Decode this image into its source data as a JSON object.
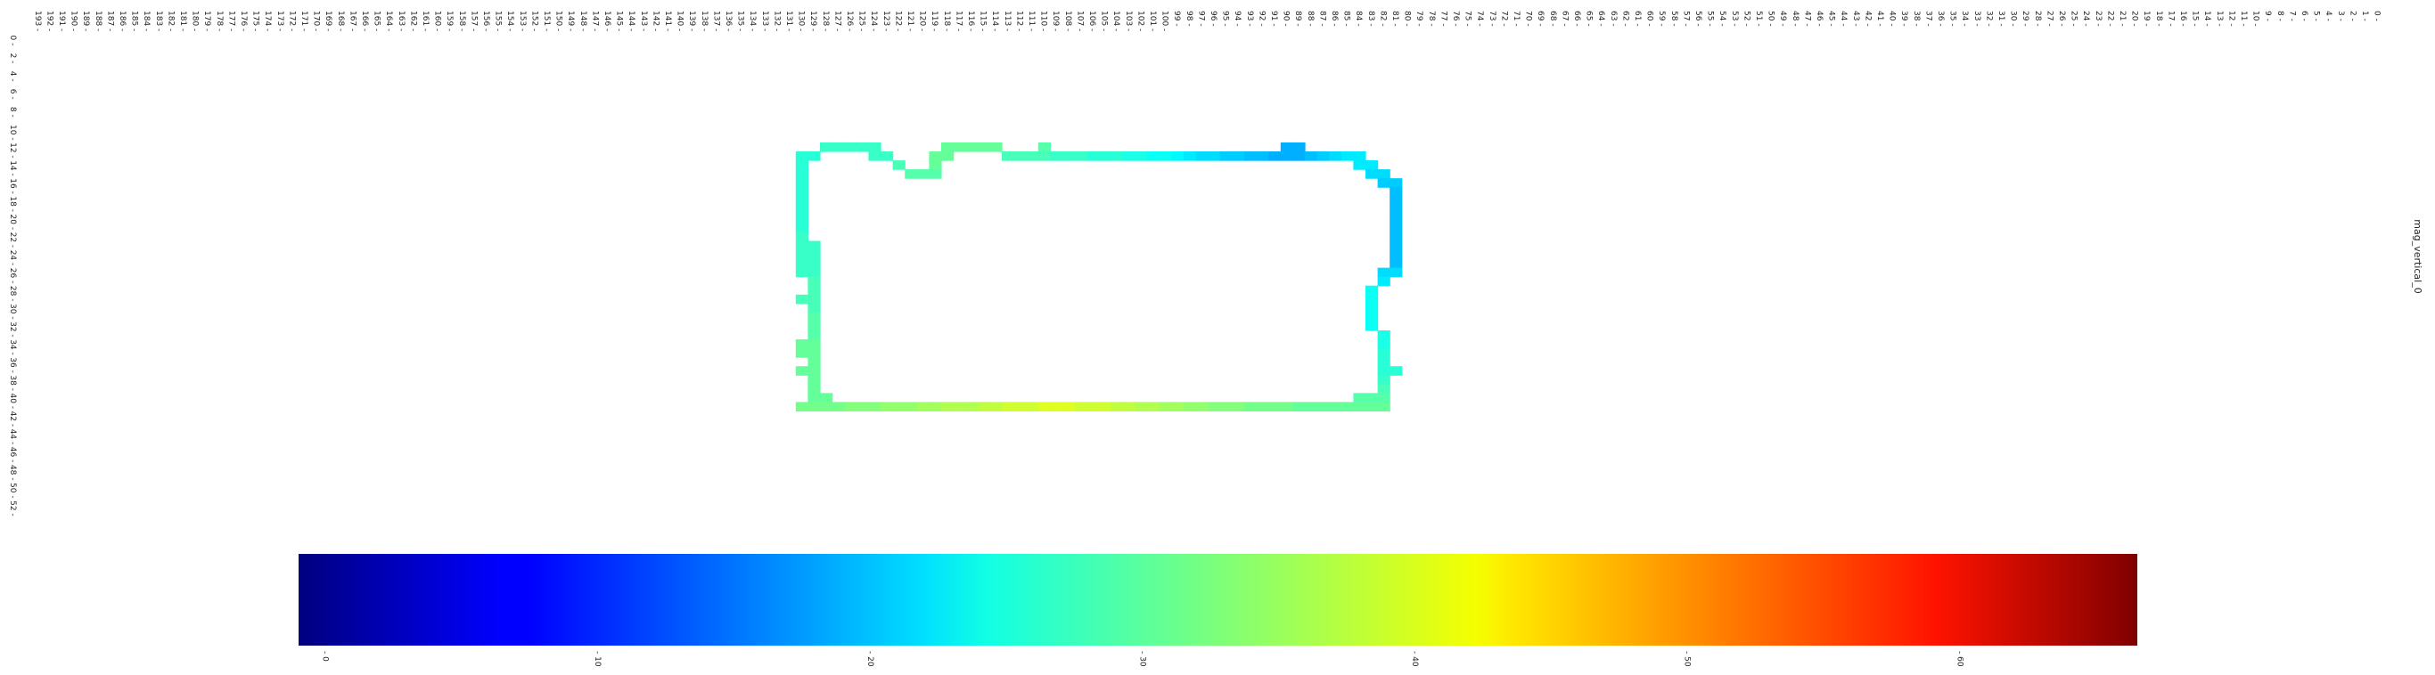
{
  "chart_data": {
    "type": "heatmap",
    "title": "",
    "xlabel": "",
    "ylabel": "",
    "colorbar": {
      "label": "mag_vertical_0",
      "colormap": "jet",
      "range": [
        -1,
        66.5
      ],
      "ticks": [
        0,
        10,
        20,
        30,
        40,
        50,
        60
      ]
    },
    "x_ticks": [
      193,
      192,
      191,
      190,
      189,
      188,
      187,
      186,
      185,
      184,
      183,
      182,
      181,
      180,
      179,
      178,
      177,
      176,
      175,
      174,
      173,
      172,
      171,
      170,
      169,
      168,
      167,
      166,
      165,
      164,
      163,
      162,
      161,
      160,
      159,
      158,
      157,
      156,
      155,
      154,
      153,
      152,
      151,
      150,
      149,
      148,
      147,
      146,
      145,
      144,
      143,
      142,
      141,
      140,
      139,
      138,
      137,
      136,
      135,
      134,
      133,
      132,
      131,
      130,
      129,
      128,
      127,
      126,
      125,
      124,
      123,
      122,
      121,
      120,
      119,
      118,
      117,
      116,
      115,
      114,
      113,
      112,
      111,
      110,
      109,
      108,
      107,
      106,
      105,
      104,
      103,
      102,
      101,
      100,
      99,
      98,
      97,
      96,
      95,
      94,
      93,
      92,
      91,
      90,
      89,
      88,
      87,
      86,
      85,
      84,
      83,
      82,
      81,
      80,
      79,
      78,
      77,
      76,
      75,
      74,
      73,
      72,
      71,
      70,
      69,
      68,
      67,
      66,
      65,
      64,
      63,
      62,
      61,
      60,
      59,
      58,
      57,
      56,
      55,
      54,
      53,
      52,
      51,
      50,
      49,
      48,
      47,
      46,
      45,
      44,
      43,
      42,
      41,
      40,
      39,
      38,
      37,
      36,
      35,
      34,
      33,
      32,
      31,
      30,
      29,
      28,
      27,
      26,
      25,
      24,
      23,
      22,
      21,
      20,
      19,
      18,
      17,
      16,
      15,
      14,
      13,
      12,
      11,
      10,
      9,
      8,
      7,
      6,
      5,
      4,
      3,
      2,
      1,
      0
    ],
    "y_ticks": [
      0,
      2,
      4,
      6,
      8,
      10,
      12,
      14,
      16,
      18,
      20,
      22,
      24,
      26,
      28,
      30,
      32,
      34,
      36,
      38,
      40,
      42,
      44,
      46,
      48,
      50,
      52
    ],
    "cells": [
      {
        "col": 90,
        "row": 9,
        "v": 19
      },
      {
        "col": 89,
        "row": 9,
        "v": 19
      },
      {
        "col": 128,
        "row": 9,
        "v": 28
      },
      {
        "col": 127,
        "row": 9,
        "v": 28
      },
      {
        "col": 126,
        "row": 9,
        "v": 28
      },
      {
        "col": 125,
        "row": 9,
        "v": 28
      },
      {
        "col": 124,
        "row": 9,
        "v": 28
      },
      {
        "col": 118,
        "row": 9,
        "v": 31
      },
      {
        "col": 117,
        "row": 9,
        "v": 31
      },
      {
        "col": 116,
        "row": 9,
        "v": 31
      },
      {
        "col": 115,
        "row": 9,
        "v": 31
      },
      {
        "col": 114,
        "row": 9,
        "v": 31
      },
      {
        "col": 110,
        "row": 9,
        "v": 30
      },
      {
        "col": 130,
        "row": 10,
        "v": 27
      },
      {
        "col": 129,
        "row": 10,
        "v": 27
      },
      {
        "col": 124,
        "row": 10,
        "v": 28
      },
      {
        "col": 123,
        "row": 10,
        "v": 28
      },
      {
        "col": 119,
        "row": 10,
        "v": 31
      },
      {
        "col": 118,
        "row": 10,
        "v": 31
      },
      {
        "col": 113,
        "row": 10,
        "v": 29
      },
      {
        "col": 112,
        "row": 10,
        "v": 29
      },
      {
        "col": 111,
        "row": 10,
        "v": 29
      },
      {
        "col": 110,
        "row": 10,
        "v": 29
      },
      {
        "col": 109,
        "row": 10,
        "v": 28
      },
      {
        "col": 108,
        "row": 10,
        "v": 28
      },
      {
        "col": 107,
        "row": 10,
        "v": 28
      },
      {
        "col": 106,
        "row": 10,
        "v": 27
      },
      {
        "col": 105,
        "row": 10,
        "v": 27
      },
      {
        "col": 104,
        "row": 10,
        "v": 27
      },
      {
        "col": 103,
        "row": 10,
        "v": 26
      },
      {
        "col": 102,
        "row": 10,
        "v": 26
      },
      {
        "col": 101,
        "row": 10,
        "v": 25
      },
      {
        "col": 100,
        "row": 10,
        "v": 25
      },
      {
        "col": 99,
        "row": 10,
        "v": 24
      },
      {
        "col": 98,
        "row": 10,
        "v": 23
      },
      {
        "col": 97,
        "row": 10,
        "v": 22
      },
      {
        "col": 96,
        "row": 10,
        "v": 22
      },
      {
        "col": 95,
        "row": 10,
        "v": 21
      },
      {
        "col": 94,
        "row": 10,
        "v": 21
      },
      {
        "col": 93,
        "row": 10,
        "v": 20
      },
      {
        "col": 92,
        "row": 10,
        "v": 20
      },
      {
        "col": 91,
        "row": 10,
        "v": 19
      },
      {
        "col": 90,
        "row": 10,
        "v": 19
      },
      {
        "col": 89,
        "row": 10,
        "v": 19
      },
      {
        "col": 88,
        "row": 10,
        "v": 20
      },
      {
        "col": 87,
        "row": 10,
        "v": 21
      },
      {
        "col": 86,
        "row": 10,
        "v": 22
      },
      {
        "col": 85,
        "row": 10,
        "v": 23
      },
      {
        "col": 84,
        "row": 10,
        "v": 23
      },
      {
        "col": 130,
        "row": 11,
        "v": 27
      },
      {
        "col": 122,
        "row": 11,
        "v": 29
      },
      {
        "col": 119,
        "row": 11,
        "v": 31
      },
      {
        "col": 84,
        "row": 11,
        "v": 23
      },
      {
        "col": 83,
        "row": 11,
        "v": 23
      },
      {
        "col": 130,
        "row": 12,
        "v": 27
      },
      {
        "col": 121,
        "row": 12,
        "v": 30
      },
      {
        "col": 120,
        "row": 12,
        "v": 30
      },
      {
        "col": 119,
        "row": 12,
        "v": 30
      },
      {
        "col": 83,
        "row": 12,
        "v": 22
      },
      {
        "col": 82,
        "row": 12,
        "v": 22
      },
      {
        "col": 130,
        "row": 13,
        "v": 27
      },
      {
        "col": 82,
        "row": 13,
        "v": 21
      },
      {
        "col": 81,
        "row": 13,
        "v": 21
      },
      {
        "col": 130,
        "row": 14,
        "v": 27
      },
      {
        "col": 81,
        "row": 14,
        "v": 20
      },
      {
        "col": 130,
        "row": 15,
        "v": 27
      },
      {
        "col": 81,
        "row": 15,
        "v": 20
      },
      {
        "col": 130,
        "row": 16,
        "v": 27
      },
      {
        "col": 81,
        "row": 16,
        "v": 20
      },
      {
        "col": 130,
        "row": 17,
        "v": 27
      },
      {
        "col": 81,
        "row": 17,
        "v": 20
      },
      {
        "col": 130,
        "row": 18,
        "v": 27
      },
      {
        "col": 81,
        "row": 18,
        "v": 20
      },
      {
        "col": 130,
        "row": 19,
        "v": 28
      },
      {
        "col": 81,
        "row": 19,
        "v": 20
      },
      {
        "col": 130,
        "row": 20,
        "v": 28
      },
      {
        "col": 129,
        "row": 20,
        "v": 28
      },
      {
        "col": 81,
        "row": 20,
        "v": 20
      },
      {
        "col": 130,
        "row": 21,
        "v": 28
      },
      {
        "col": 129,
        "row": 21,
        "v": 28
      },
      {
        "col": 81,
        "row": 21,
        "v": 20
      },
      {
        "col": 130,
        "row": 22,
        "v": 28
      },
      {
        "col": 129,
        "row": 22,
        "v": 28
      },
      {
        "col": 81,
        "row": 22,
        "v": 20
      },
      {
        "col": 130,
        "row": 23,
        "v": 28
      },
      {
        "col": 129,
        "row": 23,
        "v": 28
      },
      {
        "col": 82,
        "row": 23,
        "v": 22
      },
      {
        "col": 81,
        "row": 23,
        "v": 22
      },
      {
        "col": 129,
        "row": 24,
        "v": 29
      },
      {
        "col": 82,
        "row": 24,
        "v": 23
      },
      {
        "col": 129,
        "row": 25,
        "v": 29
      },
      {
        "col": 83,
        "row": 25,
        "v": 25
      },
      {
        "col": 130,
        "row": 26,
        "v": 29
      },
      {
        "col": 129,
        "row": 26,
        "v": 29
      },
      {
        "col": 83,
        "row": 26,
        "v": 25
      },
      {
        "col": 129,
        "row": 27,
        "v": 29
      },
      {
        "col": 83,
        "row": 27,
        "v": 25
      },
      {
        "col": 129,
        "row": 28,
        "v": 30
      },
      {
        "col": 83,
        "row": 28,
        "v": 25
      },
      {
        "col": 129,
        "row": 29,
        "v": 30
      },
      {
        "col": 83,
        "row": 29,
        "v": 25
      },
      {
        "col": 129,
        "row": 30,
        "v": 30
      },
      {
        "col": 82,
        "row": 30,
        "v": 26
      },
      {
        "col": 130,
        "row": 31,
        "v": 31
      },
      {
        "col": 129,
        "row": 31,
        "v": 31
      },
      {
        "col": 82,
        "row": 31,
        "v": 26
      },
      {
        "col": 130,
        "row": 32,
        "v": 31
      },
      {
        "col": 129,
        "row": 32,
        "v": 31
      },
      {
        "col": 82,
        "row": 32,
        "v": 27
      },
      {
        "col": 129,
        "row": 33,
        "v": 31
      },
      {
        "col": 82,
        "row": 33,
        "v": 27
      },
      {
        "col": 130,
        "row": 34,
        "v": 31
      },
      {
        "col": 129,
        "row": 34,
        "v": 31
      },
      {
        "col": 82,
        "row": 34,
        "v": 27
      },
      {
        "col": 81,
        "row": 34,
        "v": 27
      },
      {
        "col": 129,
        "row": 35,
        "v": 31
      },
      {
        "col": 82,
        "row": 35,
        "v": 28
      },
      {
        "col": 129,
        "row": 36,
        "v": 31
      },
      {
        "col": 82,
        "row": 36,
        "v": 29
      },
      {
        "col": 129,
        "row": 37,
        "v": 31
      },
      {
        "col": 128,
        "row": 37,
        "v": 31
      },
      {
        "col": 84,
        "row": 37,
        "v": 30
      },
      {
        "col": 83,
        "row": 37,
        "v": 30
      },
      {
        "col": 82,
        "row": 37,
        "v": 30
      },
      {
        "col": 130,
        "row": 38,
        "v": 32
      },
      {
        "col": 129,
        "row": 38,
        "v": 32
      },
      {
        "col": 128,
        "row": 38,
        "v": 32
      },
      {
        "col": 127,
        "row": 38,
        "v": 32
      },
      {
        "col": 126,
        "row": 38,
        "v": 33
      },
      {
        "col": 125,
        "row": 38,
        "v": 33
      },
      {
        "col": 124,
        "row": 38,
        "v": 33
      },
      {
        "col": 123,
        "row": 38,
        "v": 34
      },
      {
        "col": 122,
        "row": 38,
        "v": 34
      },
      {
        "col": 121,
        "row": 38,
        "v": 34
      },
      {
        "col": 120,
        "row": 38,
        "v": 35
      },
      {
        "col": 119,
        "row": 38,
        "v": 35
      },
      {
        "col": 118,
        "row": 38,
        "v": 36
      },
      {
        "col": 117,
        "row": 38,
        "v": 36
      },
      {
        "col": 116,
        "row": 38,
        "v": 36
      },
      {
        "col": 115,
        "row": 38,
        "v": 37
      },
      {
        "col": 114,
        "row": 38,
        "v": 37
      },
      {
        "col": 113,
        "row": 38,
        "v": 38
      },
      {
        "col": 112,
        "row": 38,
        "v": 38
      },
      {
        "col": 111,
        "row": 38,
        "v": 38
      },
      {
        "col": 110,
        "row": 38,
        "v": 39
      },
      {
        "col": 109,
        "row": 38,
        "v": 39
      },
      {
        "col": 108,
        "row": 38,
        "v": 39
      },
      {
        "col": 107,
        "row": 38,
        "v": 38
      },
      {
        "col": 106,
        "row": 38,
        "v": 38
      },
      {
        "col": 105,
        "row": 38,
        "v": 38
      },
      {
        "col": 104,
        "row": 38,
        "v": 37
      },
      {
        "col": 103,
        "row": 38,
        "v": 37
      },
      {
        "col": 102,
        "row": 38,
        "v": 36
      },
      {
        "col": 101,
        "row": 38,
        "v": 36
      },
      {
        "col": 100,
        "row": 38,
        "v": 35
      },
      {
        "col": 99,
        "row": 38,
        "v": 35
      },
      {
        "col": 98,
        "row": 38,
        "v": 34
      },
      {
        "col": 97,
        "row": 38,
        "v": 34
      },
      {
        "col": 96,
        "row": 38,
        "v": 33
      },
      {
        "col": 95,
        "row": 38,
        "v": 33
      },
      {
        "col": 94,
        "row": 38,
        "v": 33
      },
      {
        "col": 93,
        "row": 38,
        "v": 32
      },
      {
        "col": 92,
        "row": 38,
        "v": 32
      },
      {
        "col": 91,
        "row": 38,
        "v": 32
      },
      {
        "col": 90,
        "row": 38,
        "v": 32
      },
      {
        "col": 89,
        "row": 38,
        "v": 31
      },
      {
        "col": 88,
        "row": 38,
        "v": 31
      },
      {
        "col": 87,
        "row": 38,
        "v": 31
      },
      {
        "col": 86,
        "row": 38,
        "v": 31
      },
      {
        "col": 85,
        "row": 38,
        "v": 31
      },
      {
        "col": 84,
        "row": 38,
        "v": 31
      },
      {
        "col": 83,
        "row": 38,
        "v": 31
      },
      {
        "col": 82,
        "row": 38,
        "v": 31
      }
    ]
  }
}
